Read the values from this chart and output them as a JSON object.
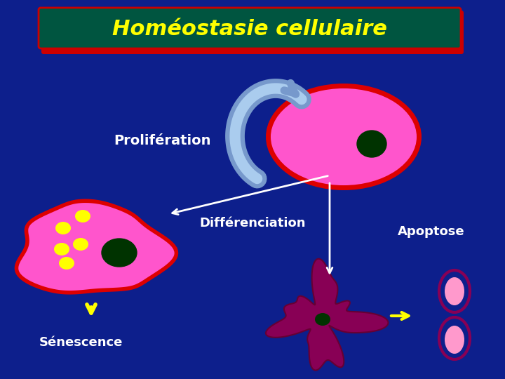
{
  "bg_color": "#0d1f8c",
  "title": "Homéostasie cellulaire",
  "title_color": "#ffff00",
  "title_bg_top": "#005540",
  "title_bg_bot": "#002210",
  "title_border": "#cc0000",
  "label_proliferation": "Prolifération",
  "label_differenciation": "Différenciation",
  "label_senescence": "Sénescence",
  "label_apoptose": "Apoptose",
  "label_color": "#ffffff",
  "cell_pink": "#ff55cc",
  "cell_border_red": "#dd0000",
  "cell_nucleus_dark": "#003300",
  "cell_granule_yellow": "#ffff00",
  "arrow_blue_outer": "#7799cc",
  "arrow_blue_inner": "#aaccee",
  "arrow_white": "#ffffff",
  "arrow_yellow": "#ffff00",
  "apoptose_body_color": "#880055",
  "apoptose_inner_pink": "#ff99cc",
  "senescence_label_color": "#ffffff"
}
